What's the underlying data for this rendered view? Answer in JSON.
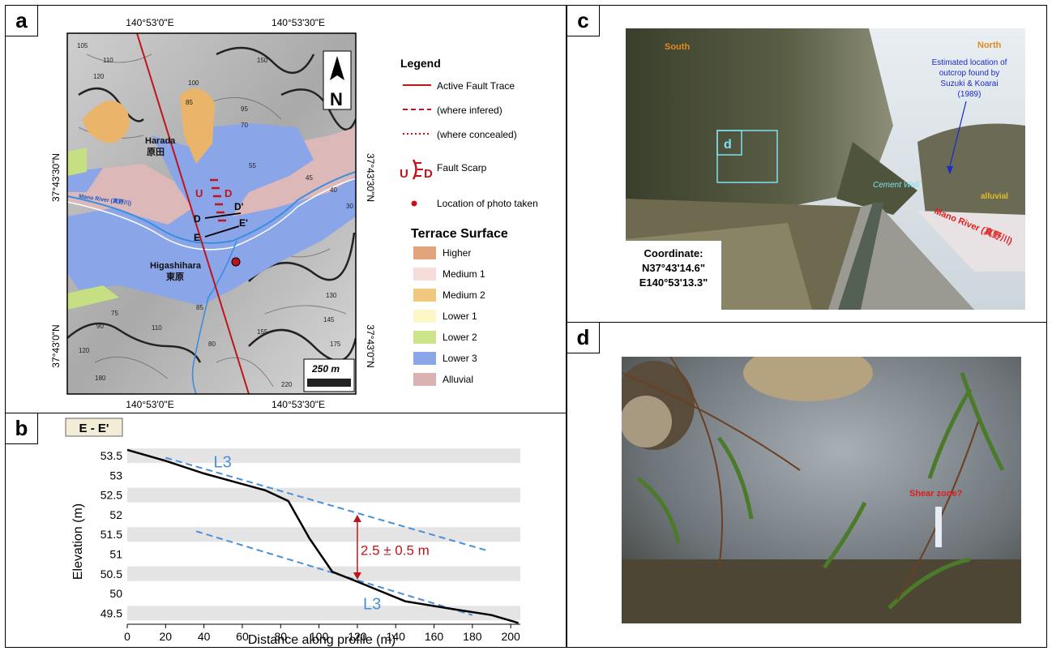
{
  "panels": {
    "a": "a",
    "b": "b",
    "c": "c",
    "d": "d"
  },
  "map": {
    "top_ticks": [
      "140°53'0\"E",
      "140°53'30\"E"
    ],
    "bottom_ticks": [
      "140°53'0\"E",
      "140°53'30\"E"
    ],
    "left_ticks": [
      "37°43'30\"N",
      "37°43'0\"N"
    ],
    "right_ticks": [
      "37°43'30\"N",
      "37°43'0\"N"
    ],
    "places": {
      "harada_en": "Harada",
      "harada_jp": "原田",
      "higashihara_en": "Higashihara",
      "higashihara_jp": "東原"
    },
    "river_label": "Mano River (真野川)",
    "section_labels": {
      "D": "D",
      "D_prime": "D'",
      "E": "E",
      "E_prime": "E'"
    },
    "scarp_labels": {
      "U": "U",
      "D": "D"
    },
    "scale_bar": "250 m",
    "north": "N",
    "contour_labels": [
      "105",
      "110",
      "120",
      "95",
      "70",
      "85",
      "100",
      "150",
      "55",
      "45",
      "40",
      "30",
      "75",
      "90",
      "110",
      "120",
      "180",
      "85",
      "80",
      "130",
      "145",
      "155",
      "175",
      "200",
      "220"
    ]
  },
  "legend": {
    "title": "Legend",
    "items": [
      "Active Fault Trace",
      "(where infered)",
      "(where concealed)",
      "Fault Scarp",
      "Location of photo taken"
    ],
    "scarp_u": "U",
    "scarp_d": "D",
    "terrace_title": "Terrace Surface",
    "terraces": [
      {
        "label": "Higher",
        "color": "#e0a37a"
      },
      {
        "label": "Medium 1",
        "color": "#f7dcdc"
      },
      {
        "label": "Medium 2",
        "color": "#f0c77c"
      },
      {
        "label": "Lower 1",
        "color": "#fbf7c7"
      },
      {
        "label": "Lower 2",
        "color": "#cde58a"
      },
      {
        "label": "Lower 3",
        "color": "#8aa6e8"
      },
      {
        "label": "Alluvial",
        "color": "#d9b3b3"
      }
    ]
  },
  "profile": {
    "box_label": "E - E'",
    "annotation": "2.5 ± 0.5 m",
    "l3_upper": "L3",
    "l3_lower": "L3"
  },
  "chart_data": {
    "type": "line",
    "xlabel": "Distance along profile (m)",
    "ylabel": "Elevation (m)",
    "xlim": [
      0,
      205
    ],
    "ylim": [
      49.3,
      53.75
    ],
    "xticks": [
      "0",
      "20",
      "40",
      "60",
      "80",
      "100",
      "120",
      "140",
      "160",
      "180",
      "200"
    ],
    "yticks": [
      "53.5",
      "53",
      "52.5",
      "52",
      "51.5",
      "51",
      "50.5",
      "50",
      "49.5"
    ],
    "grid": "horizontal bands",
    "series": [
      {
        "x": [
          0,
          20,
          40,
          60,
          72,
          84,
          95,
          107,
          120,
          145,
          170,
          190,
          204
        ],
        "y": [
          53.65,
          53.37,
          53.05,
          52.78,
          52.62,
          52.35,
          51.4,
          50.55,
          50.3,
          49.8,
          49.6,
          49.45,
          49.25
        ]
      }
    ],
    "fit_lines": [
      {
        "x": [
          20,
          187
        ],
        "y": [
          53.45,
          51.1
        ]
      },
      {
        "x": [
          36,
          180
        ],
        "y": [
          51.58,
          49.45
        ]
      }
    ],
    "offset_arrow": {
      "x": 120,
      "y": [
        52.0,
        50.35
      ]
    }
  },
  "photo_c": {
    "south": "South",
    "north": "North",
    "note": "Estimated location of outcrop found by Suzuki & Koarai (1989)",
    "note_lines": [
      "Estimated location of",
      "outcrop found by",
      "Suzuki & Koarai",
      "(1989)"
    ],
    "cement_wall": "Cement Wall",
    "alluvial": "alluvial",
    "river": "Mano River (真野川)",
    "inset_label": "d",
    "coord_title": "Coordinate:",
    "coord_n": "N37°43'14.6\"",
    "coord_e": "E140°53'13.3\""
  },
  "photo_d": {
    "note": "Shear zone?"
  }
}
